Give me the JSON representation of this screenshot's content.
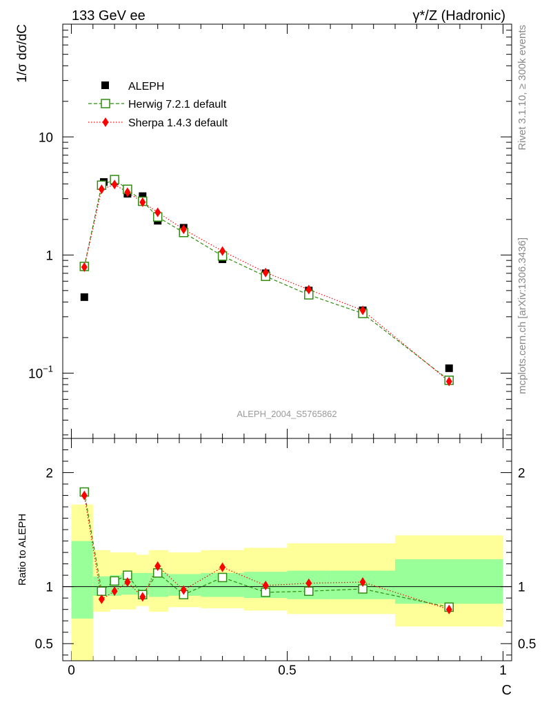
{
  "header": {
    "left": "133 GeV ee",
    "right": "γ*/Z (Hadronic)"
  },
  "side_text": {
    "rivet": "Rivet 3.1.10, ≥ 300k events",
    "source": "mcplots.cern.ch [arXiv:1306.3436]"
  },
  "watermark": "ALEPH_2004_S5765862",
  "colors": {
    "aleph": "#000000",
    "herwig": "#2e8b0f",
    "sherpa": "#ff0000",
    "band_inner": "#99ff99",
    "band_outer": "#ffff99"
  },
  "legend": [
    {
      "label": "ALEPH"
    },
    {
      "label": "Herwig 7.2.1 default"
    },
    {
      "label": "Sherpa 1.4.3 default"
    }
  ],
  "chart_data": [
    {
      "type": "scatter",
      "panel": "main",
      "ylabel": "1/σ  dσ/dC",
      "log_y": true,
      "xlim": [
        -0.02,
        1.02
      ],
      "ylim": [
        0.028,
        90
      ],
      "ytick_labels": [
        "10^-1",
        "1",
        "10"
      ],
      "series": [
        {
          "name": "ALEPH",
          "x": [
            0.03,
            0.075,
            0.1,
            0.13,
            0.165,
            0.2,
            0.26,
            0.35,
            0.45,
            0.55,
            0.675,
            0.875
          ],
          "y": [
            0.44,
            4.15,
            4.2,
            3.3,
            3.15,
            1.95,
            1.7,
            0.92,
            0.7,
            0.5,
            0.34,
            0.11
          ]
        },
        {
          "name": "Herwig 7.2.1 default",
          "x": [
            0.03,
            0.07,
            0.1,
            0.13,
            0.165,
            0.2,
            0.26,
            0.35,
            0.45,
            0.55,
            0.675,
            0.875
          ],
          "y": [
            0.8,
            3.9,
            4.35,
            3.6,
            2.85,
            2.1,
            1.55,
            0.98,
            0.66,
            0.46,
            0.32,
            0.087
          ]
        },
        {
          "name": "Sherpa 1.4.3 default",
          "x": [
            0.03,
            0.07,
            0.1,
            0.13,
            0.165,
            0.2,
            0.26,
            0.35,
            0.45,
            0.55,
            0.675,
            0.875
          ],
          "y": [
            0.79,
            3.6,
            3.95,
            3.4,
            2.8,
            2.3,
            1.65,
            1.08,
            0.71,
            0.51,
            0.34,
            0.085
          ]
        }
      ]
    },
    {
      "type": "line",
      "panel": "ratio",
      "xlabel": "C",
      "ylabel": "Ratio to ALEPH",
      "xlim": [
        -0.02,
        1.02
      ],
      "ylim": [
        0.35,
        2.3
      ],
      "xtick_labels": [
        "0",
        "0.5",
        "1"
      ],
      "ytick_labels": [
        "0.5",
        "1",
        "2"
      ],
      "reference_line": 1,
      "uncertainty_bands": {
        "edges": [
          0.0,
          0.05,
          0.09,
          0.115,
          0.15,
          0.18,
          0.225,
          0.3,
          0.4,
          0.5,
          0.6,
          0.75,
          1.0
        ],
        "inner": [
          [
            0.72,
            1.4
          ],
          [
            0.92,
            1.09
          ],
          [
            0.92,
            1.1
          ],
          [
            0.93,
            1.12
          ],
          [
            0.93,
            1.12
          ],
          [
            0.91,
            1.12
          ],
          [
            0.92,
            1.11
          ],
          [
            0.91,
            1.12
          ],
          [
            0.9,
            1.13
          ],
          [
            0.89,
            1.14
          ],
          [
            0.89,
            1.14
          ],
          [
            0.85,
            1.24
          ]
        ],
        "outer": [
          [
            0.35,
            1.72
          ],
          [
            0.78,
            1.32
          ],
          [
            0.8,
            1.3
          ],
          [
            0.8,
            1.3
          ],
          [
            0.83,
            1.28
          ],
          [
            0.78,
            1.32
          ],
          [
            0.82,
            1.3
          ],
          [
            0.81,
            1.32
          ],
          [
            0.79,
            1.34
          ],
          [
            0.76,
            1.38
          ],
          [
            0.76,
            1.38
          ],
          [
            0.65,
            1.45
          ]
        ]
      },
      "series": [
        {
          "name": "Herwig 7.2.1 default",
          "x": [
            0.03,
            0.07,
            0.1,
            0.13,
            0.165,
            0.2,
            0.26,
            0.35,
            0.45,
            0.55,
            0.675,
            0.875
          ],
          "y": [
            1.83,
            0.96,
            1.05,
            1.1,
            0.93,
            1.12,
            0.93,
            1.08,
            0.95,
            0.96,
            0.98,
            0.82
          ]
        },
        {
          "name": "Sherpa 1.4.3 default",
          "x": [
            0.03,
            0.07,
            0.1,
            0.13,
            0.165,
            0.2,
            0.26,
            0.35,
            0.45,
            0.55,
            0.675,
            0.875
          ],
          "y": [
            1.8,
            0.89,
            0.96,
            1.04,
            0.91,
            1.18,
            0.97,
            1.17,
            1.01,
            1.03,
            1.04,
            0.8
          ]
        }
      ]
    }
  ]
}
